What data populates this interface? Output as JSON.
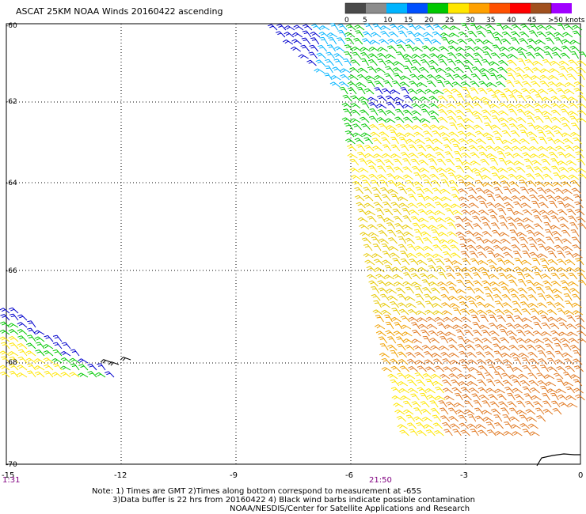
{
  "title": "ASCAT 25KM NOAA Winds 20160422 ascending",
  "legend": {
    "labels": [
      "0",
      "5",
      "10",
      "15",
      "20",
      "25",
      "30",
      "35",
      "40",
      "45",
      ">50 knots"
    ],
    "colors": [
      "#4a4a4a",
      "#8c8c8c",
      "#00b4ff",
      "#0050ff",
      "#00c800",
      "#ffe600",
      "#ffa000",
      "#ff5000",
      "#ff0000",
      "#a0501e",
      "#a000ff"
    ]
  },
  "axes": {
    "lat_labels": [
      "-60",
      "-62",
      "-64",
      "-66",
      "-68",
      "-70"
    ],
    "lon_labels": [
      "-15",
      "-12",
      "-9",
      "-6",
      "-3",
      "0"
    ],
    "time_left": "1:31",
    "time_mid": "21:50",
    "lat_range": [
      -60,
      -70
    ],
    "lon_range": [
      -15,
      0
    ]
  },
  "barb_colors": {
    "lightblue": "#00b4ff",
    "blue": "#0000cc",
    "green": "#00c800",
    "yellow": "#ffe600",
    "darkyellow": "#e6c800",
    "orange": "#f0a000",
    "darkorange": "#e07820",
    "black": "#000000"
  },
  "notes": {
    "line1": "Note: 1) Times are GMT 2)Times along bottom correspond to measurement at -65S",
    "line2": "3)Data buffer is 22 hrs from 20160422 4) Black wind barbs indicate possible contamination",
    "line3": "NOAA/NESDIS/Center for Satellite Applications and Research"
  }
}
